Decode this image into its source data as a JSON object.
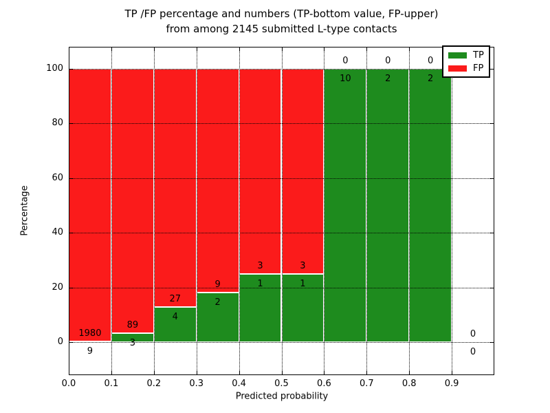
{
  "chart_data": {
    "type": "bar",
    "stacked": true,
    "orientation": "vertical",
    "title_line1": "TP /FP percentage and numbers (TP-bottom value, FP-upper)",
    "title_line2": "from among 2145 submitted L-type contacts",
    "xlabel": "Predicted probability",
    "ylabel": "Percentage",
    "xlim": [
      0.0,
      1.0
    ],
    "ylim": [
      -12,
      108
    ],
    "grid": "dotted, drawn above bars",
    "legend_position": "upper right",
    "x_tick_labels": [
      "0.0",
      "0.1",
      "0.2",
      "0.3",
      "0.4",
      "0.5",
      "0.6",
      "0.7",
      "0.8",
      "0.9"
    ],
    "y_tick_labels": [
      "0",
      "20",
      "40",
      "60",
      "80",
      "100"
    ],
    "y_ticks": [
      0,
      20,
      40,
      60,
      80,
      100
    ],
    "bins": [
      {
        "range": [
          0.0,
          0.1
        ],
        "tp": 9,
        "fp": 1980,
        "tp_percent": 0.45
      },
      {
        "range": [
          0.1,
          0.2
        ],
        "tp": 3,
        "fp": 89,
        "tp_percent": 3.26
      },
      {
        "range": [
          0.2,
          0.3
        ],
        "tp": 4,
        "fp": 27,
        "tp_percent": 12.9
      },
      {
        "range": [
          0.3,
          0.4
        ],
        "tp": 2,
        "fp": 9,
        "tp_percent": 18.18
      },
      {
        "range": [
          0.4,
          0.5
        ],
        "tp": 1,
        "fp": 3,
        "tp_percent": 25
      },
      {
        "range": [
          0.5,
          0.6
        ],
        "tp": 1,
        "fp": 3,
        "tp_percent": 25
      },
      {
        "range": [
          0.6,
          0.7
        ],
        "tp": 10,
        "fp": 0,
        "tp_percent": 100
      },
      {
        "range": [
          0.7,
          0.8
        ],
        "tp": 2,
        "fp": 0,
        "tp_percent": 100
      },
      {
        "range": [
          0.8,
          0.9
        ],
        "tp": 2,
        "fp": 0,
        "tp_percent": 100
      },
      {
        "range": [
          0.9,
          1.0
        ],
        "tp": 0,
        "fp": 0,
        "tp_percent": null
      }
    ],
    "legend": [
      {
        "label": "TP",
        "color": "#1e8b1e"
      },
      {
        "label": "FP",
        "color": "#fb1b1b"
      }
    ],
    "colors": {
      "tp": "#1e8b1e",
      "fp": "#fb1b1b",
      "bar_edge": "#ffffff",
      "grid": "#000000"
    }
  }
}
